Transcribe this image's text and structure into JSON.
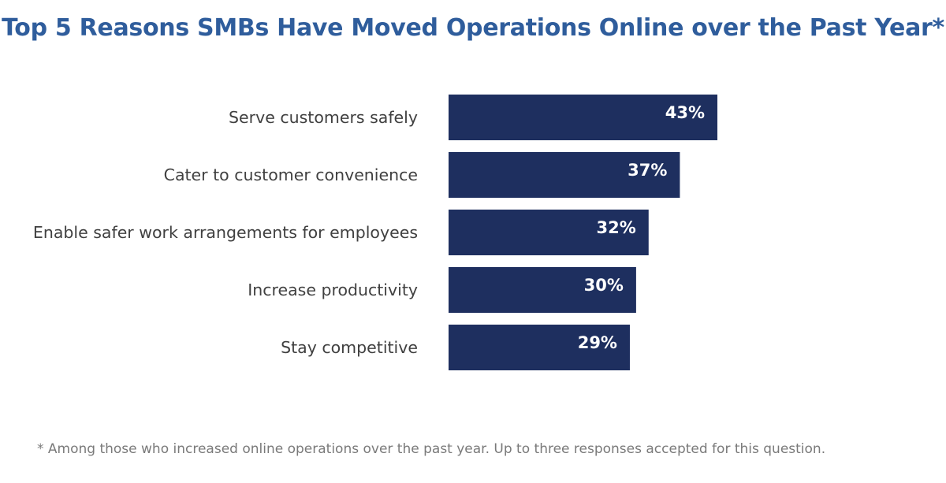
{
  "colors": {
    "title": "#2f5d9c",
    "bar": "#1e2f5f",
    "label_text": "#404040",
    "value_text": "#ffffff",
    "footnote": "#7a7a7a"
  },
  "chart_data": {
    "type": "bar",
    "orientation": "horizontal",
    "title": "Top 5 Reasons SMBs Have Moved Operations Online over the Past Year*",
    "xlabel": "",
    "ylabel": "",
    "xlim": [
      0,
      100
    ],
    "grid": false,
    "legend": "none",
    "categories": [
      "Serve customers safely",
      "Cater to customer convenience",
      "Enable safer work arrangements for employees",
      "Increase productivity",
      "Stay competitive"
    ],
    "values": [
      43,
      37,
      32,
      30,
      29
    ],
    "value_labels": [
      "43%",
      "37%",
      "32%",
      "30%",
      "29%"
    ],
    "footnote": "* Among those who increased online operations over the past year. Up to three responses accepted for this question."
  }
}
